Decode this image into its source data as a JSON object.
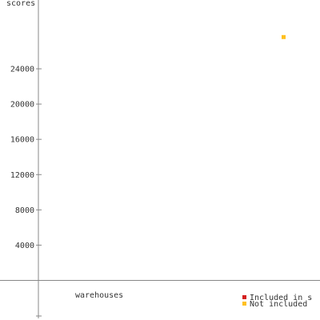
{
  "chart_data": {
    "type": "scatter",
    "ylabel": "scores",
    "xlabel": "warehouses",
    "ylim": [
      -4000,
      32000
    ],
    "yticks": [
      4000,
      8000,
      12000,
      16000,
      20000,
      24000
    ],
    "ytick_labels": [
      "4000",
      "8000",
      "12000",
      "16000",
      "20000",
      "24000"
    ],
    "series": [
      {
        "name": "Included in s",
        "color": "#d42020",
        "points": []
      },
      {
        "name": "Not included",
        "color": "#ffc020",
        "points": [
          {
            "y": 27600
          }
        ]
      }
    ],
    "legend": "bottom-right",
    "grid": false
  }
}
